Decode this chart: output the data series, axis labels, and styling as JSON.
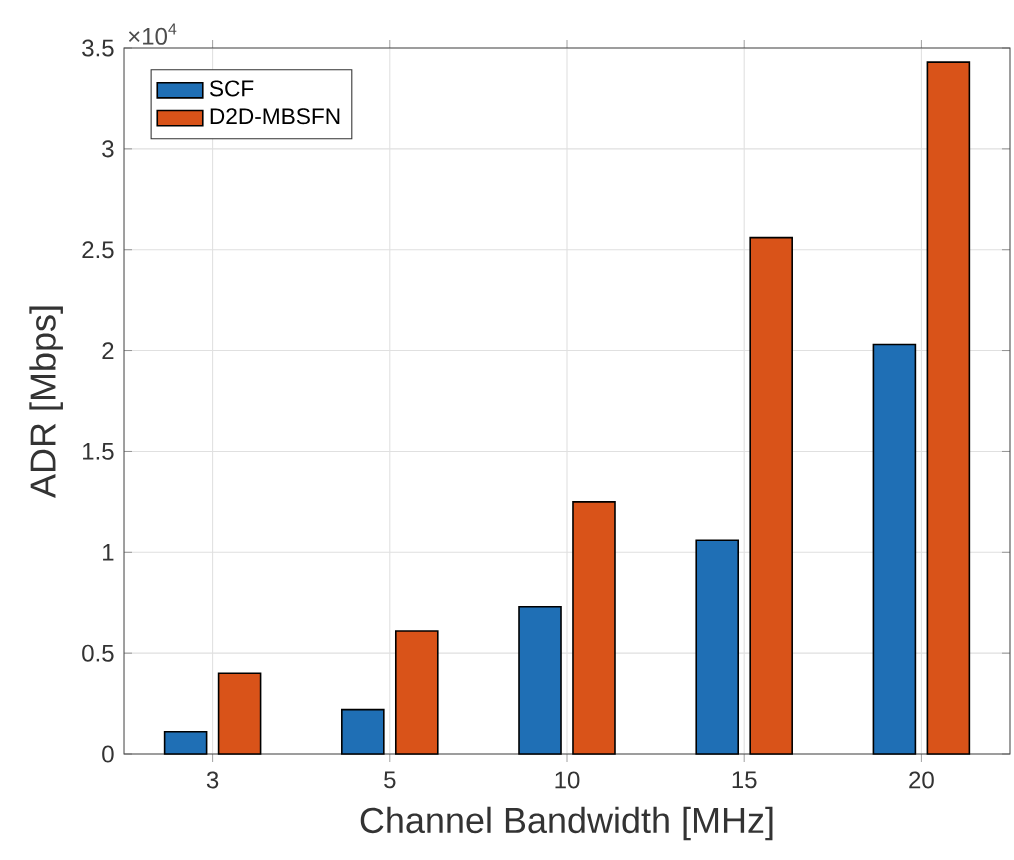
{
  "chart_data": {
    "type": "bar",
    "xlabel": "Channel Bandwidth [MHz]",
    "ylabel": "ADR [Mbps]",
    "categories": [
      "3",
      "5",
      "10",
      "15",
      "20"
    ],
    "series": [
      {
        "name": "SCF",
        "color": "#1f6fb5",
        "values": [
          0.11,
          0.22,
          0.73,
          1.06,
          2.03
        ]
      },
      {
        "name": "D2D-MBSFN",
        "color": "#d95319",
        "values": [
          0.4,
          0.61,
          1.25,
          2.56,
          3.43
        ]
      }
    ],
    "ylim": [
      0,
      3.5
    ],
    "yticks": [
      0,
      0.5,
      1,
      1.5,
      2,
      2.5,
      3,
      3.5
    ],
    "annotations": [
      "×10$^{4}$"
    ],
    "grid": true,
    "legend": "top left"
  }
}
